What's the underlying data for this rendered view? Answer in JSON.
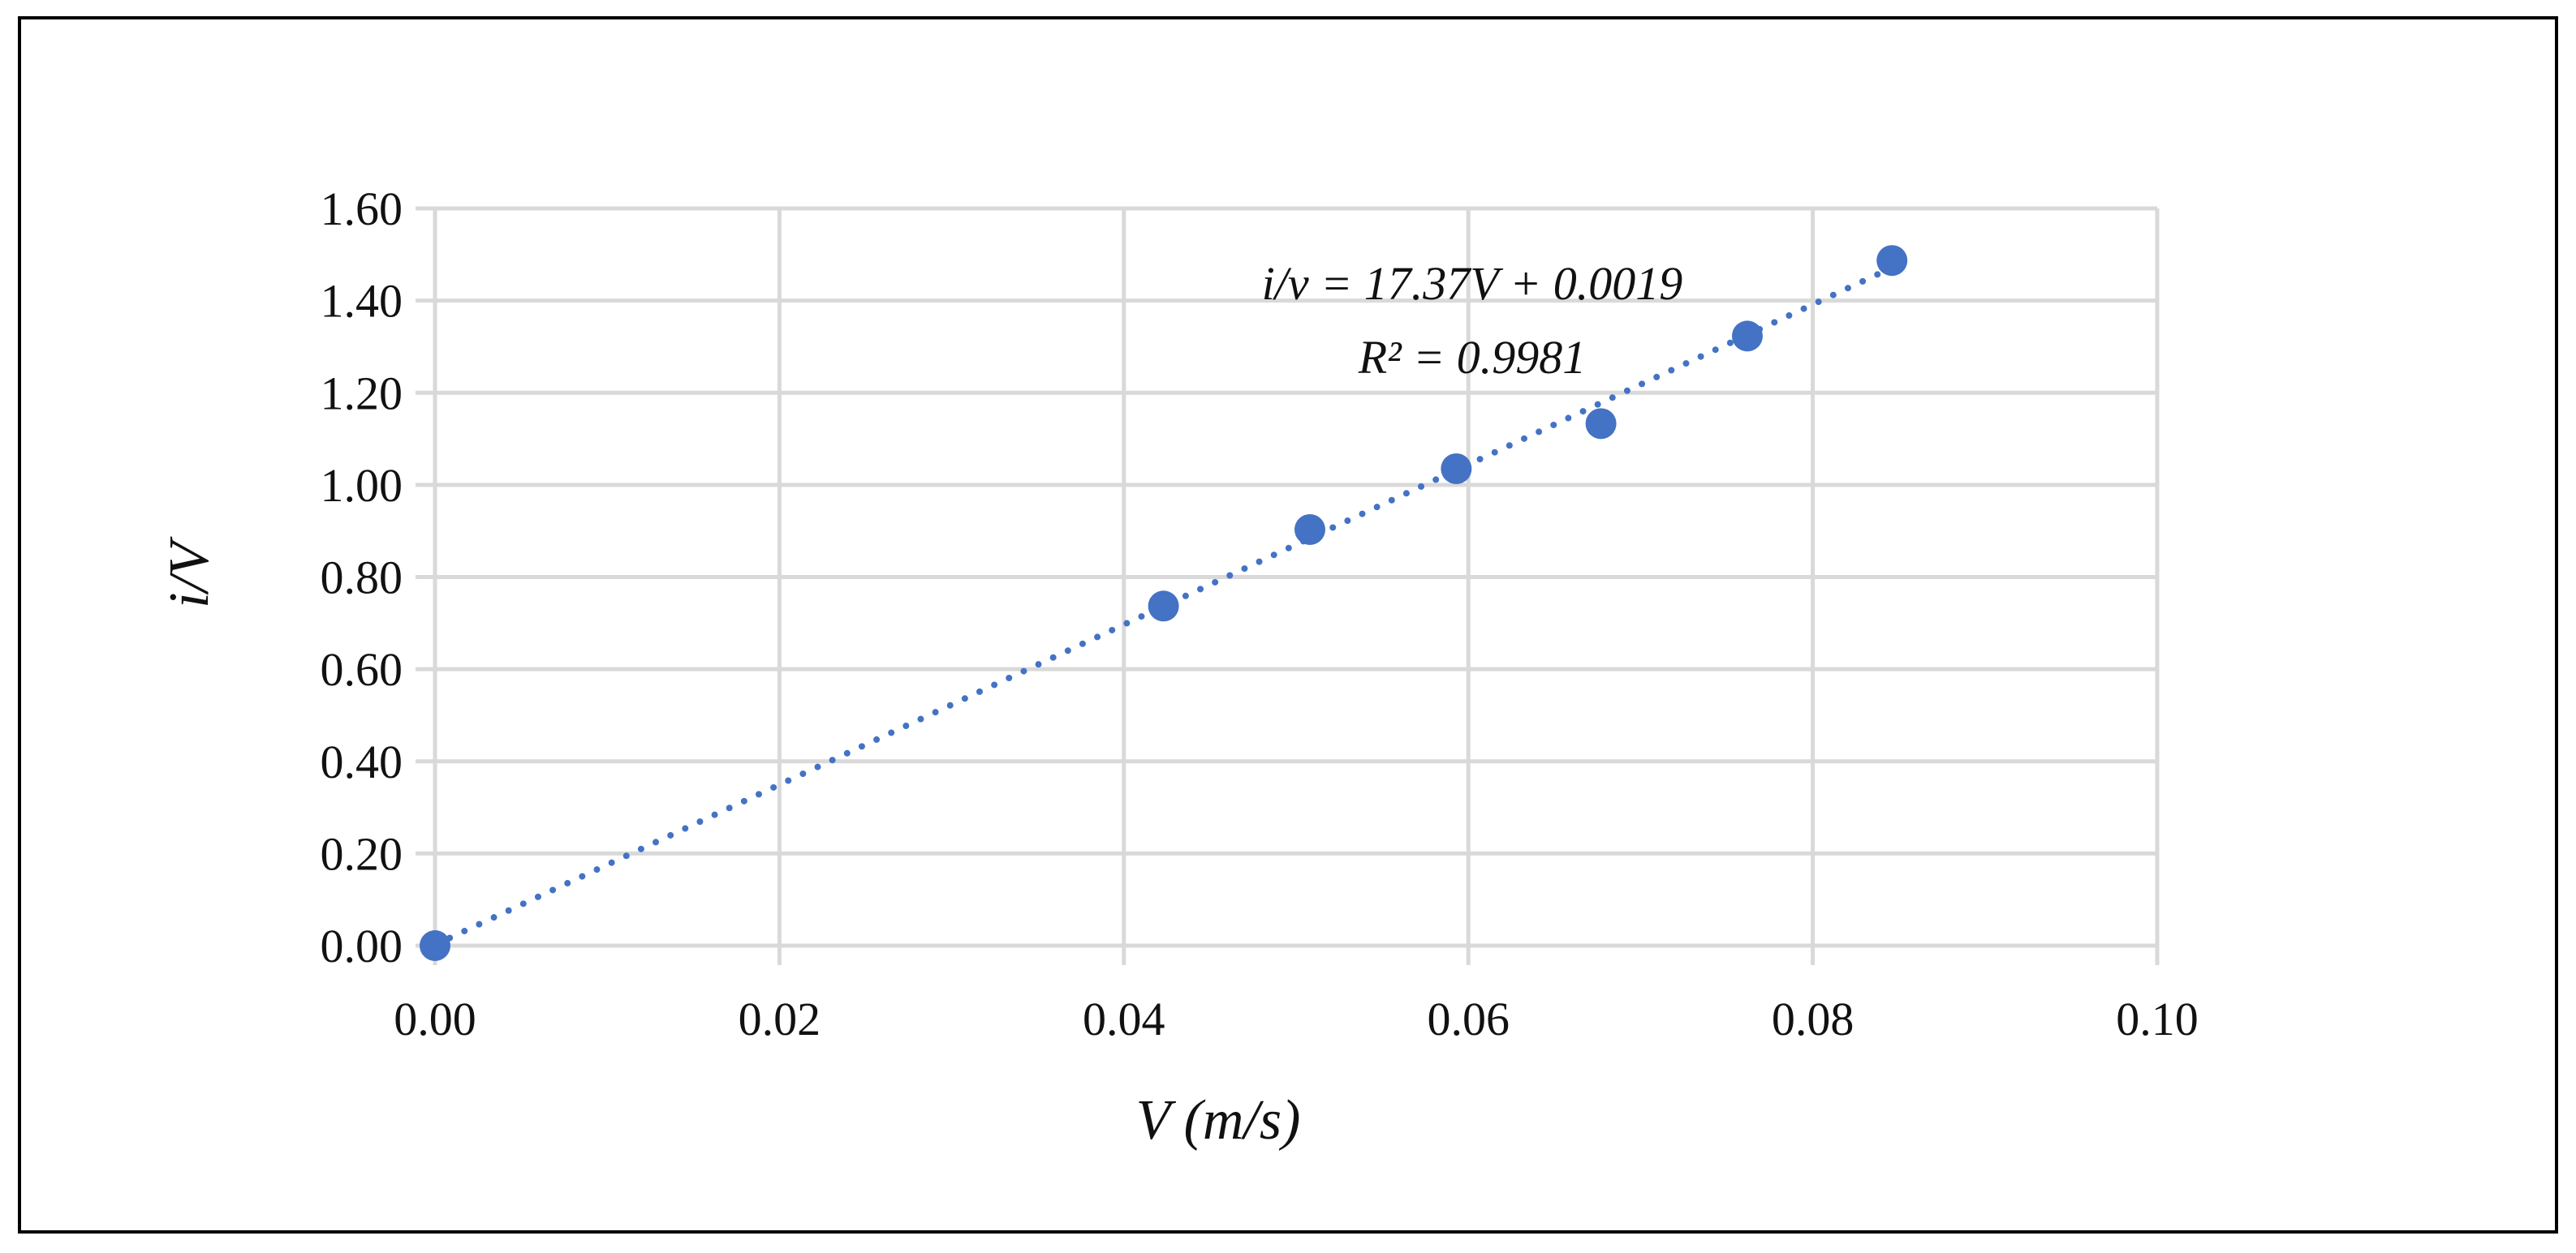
{
  "chart_data": {
    "type": "scatter",
    "title": "",
    "xlabel": "V (m/s)",
    "ylabel": "i/V",
    "xlim": [
      0,
      0.1
    ],
    "ylim": [
      0,
      1.6
    ],
    "x_ticks": [
      "0.00",
      "0.02",
      "0.04",
      "0.06",
      "0.08",
      "0.10"
    ],
    "y_ticks": [
      "0.00",
      "0.20",
      "0.40",
      "0.60",
      "0.80",
      "1.00",
      "1.20",
      "1.40",
      "1.60"
    ],
    "grid": true,
    "series": [
      {
        "name": "i/V",
        "color": "#4472c4",
        "points": [
          {
            "x": 0.0,
            "y": 0.0
          },
          {
            "x": 0.0423,
            "y": 0.737
          },
          {
            "x": 0.0508,
            "y": 0.903
          },
          {
            "x": 0.0593,
            "y": 1.035
          },
          {
            "x": 0.0677,
            "y": 1.133
          },
          {
            "x": 0.0762,
            "y": 1.323
          },
          {
            "x": 0.0846,
            "y": 1.487
          }
        ]
      }
    ],
    "trendline": {
      "type": "linear",
      "slope": 17.37,
      "intercept": 0.0019,
      "x_range": [
        0,
        0.0846
      ],
      "style": "dotted",
      "color": "#4472c4",
      "equation_label": "i/v = 17.37V + 0.0019",
      "r2_label": "R² = 0.9981"
    }
  }
}
